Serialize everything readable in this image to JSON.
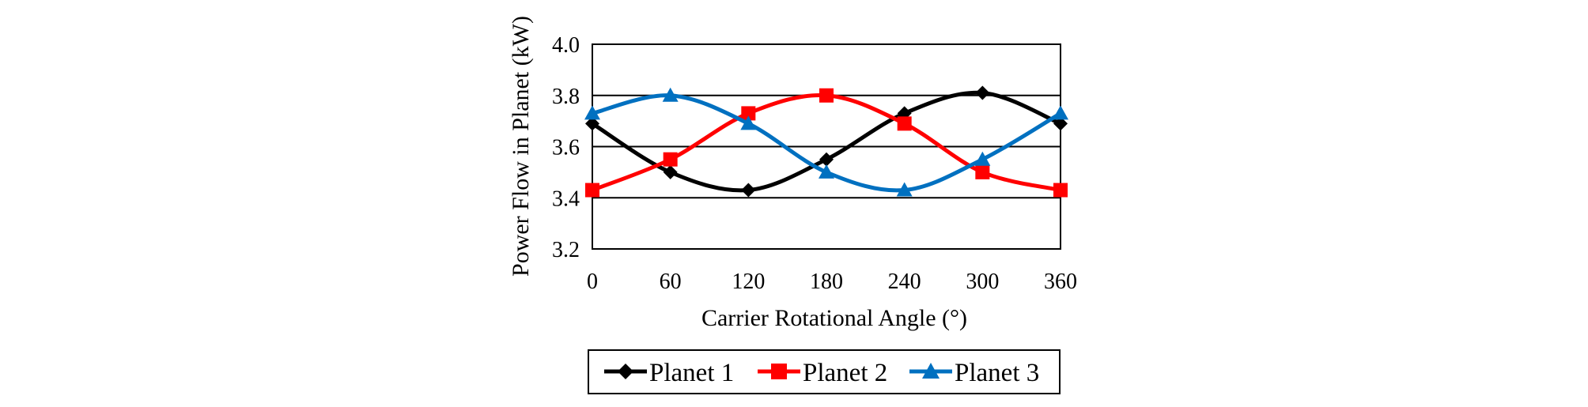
{
  "chart_data": {
    "type": "line",
    "xlabel": "Carrier Rotational Angle (°)",
    "ylabel": "Power Flow in Planet (kW)",
    "xlim": [
      0,
      360
    ],
    "ylim": [
      3.2,
      4.0
    ],
    "x_ticks": [
      "0",
      "60",
      "120",
      "180",
      "240",
      "300",
      "360"
    ],
    "y_ticks": [
      "3.2",
      "3.4",
      "3.6",
      "3.8",
      "4.0"
    ],
    "grid": "horizontal",
    "legend_position": "bottom",
    "x": [
      0,
      60,
      120,
      180,
      240,
      300,
      360
    ],
    "series": [
      {
        "name": "Planet 1",
        "color": "#000000",
        "marker": "diamond",
        "values": [
          3.69,
          3.5,
          3.43,
          3.55,
          3.73,
          3.81,
          3.69
        ]
      },
      {
        "name": "Planet 2",
        "color": "#ff0000",
        "marker": "square",
        "values": [
          3.43,
          3.55,
          3.73,
          3.8,
          3.69,
          3.5,
          3.43
        ]
      },
      {
        "name": "Planet 3",
        "color": "#0070c0",
        "marker": "triangle",
        "values": [
          3.73,
          3.8,
          3.69,
          3.5,
          3.43,
          3.55,
          3.73
        ]
      }
    ]
  }
}
